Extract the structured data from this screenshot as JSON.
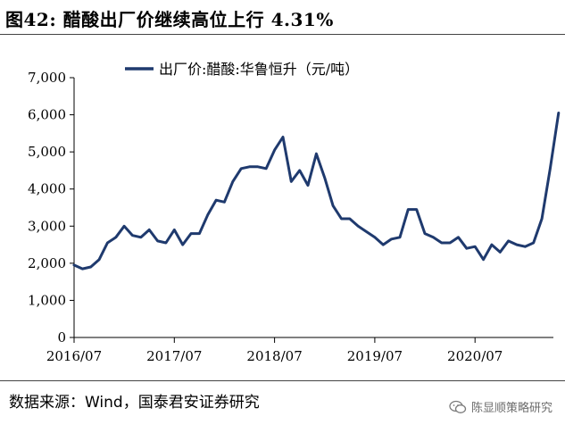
{
  "title": "图42: 醋酸出厂价继续高位上行 4.31%",
  "source": "数据来源：Wind，国泰君安证券研究",
  "watermark": {
    "text": "陈显顺策略研究",
    "icon": "wechat-logo-icon",
    "color": "#6c6c6c"
  },
  "chart_data": {
    "type": "line",
    "title": "",
    "xlabel": "",
    "ylabel": "",
    "ylim": [
      0,
      7000
    ],
    "y_ticks": [
      0,
      1000,
      2000,
      3000,
      4000,
      5000,
      6000,
      7000
    ],
    "y_tick_labels": [
      "0",
      "1,000",
      "2,000",
      "3,000",
      "4,000",
      "5,000",
      "6,000",
      "7,000"
    ],
    "x_ticks": [
      "2016/07",
      "2017/07",
      "2018/07",
      "2019/07",
      "2020/07"
    ],
    "xlim": [
      "2016-07",
      "2021-05"
    ],
    "grid": false,
    "legend_position": "top",
    "series": [
      {
        "name": "出厂价:醋酸:华鲁恒升（元/吨）",
        "color": "#1f3a6e",
        "x": [
          "2016-07",
          "2016-08",
          "2016-09",
          "2016-10",
          "2016-11",
          "2016-12",
          "2017-01",
          "2017-02",
          "2017-03",
          "2017-04",
          "2017-05",
          "2017-06",
          "2017-07",
          "2017-08",
          "2017-09",
          "2017-10",
          "2017-11",
          "2017-12",
          "2018-01",
          "2018-02",
          "2018-03",
          "2018-04",
          "2018-05",
          "2018-06",
          "2018-07",
          "2018-08",
          "2018-09",
          "2018-10",
          "2018-11",
          "2018-12",
          "2019-01",
          "2019-02",
          "2019-03",
          "2019-04",
          "2019-05",
          "2019-06",
          "2019-07",
          "2019-08",
          "2019-09",
          "2019-10",
          "2019-11",
          "2019-12",
          "2020-01",
          "2020-02",
          "2020-03",
          "2020-04",
          "2020-05",
          "2020-06",
          "2020-07",
          "2020-08",
          "2020-09",
          "2020-10",
          "2020-11",
          "2020-12",
          "2021-01",
          "2021-02",
          "2021-03",
          "2021-04",
          "2021-05"
        ],
        "values": [
          1950,
          1850,
          1900,
          2100,
          2550,
          2700,
          3000,
          2750,
          2700,
          2900,
          2600,
          2550,
          2900,
          2500,
          2800,
          2800,
          3300,
          3700,
          3650,
          4200,
          4550,
          4600,
          4600,
          4550,
          5050,
          5400,
          4200,
          4500,
          4100,
          4950,
          4300,
          3550,
          3200,
          3200,
          3000,
          2850,
          2700,
          2500,
          2650,
          2700,
          3450,
          3450,
          2800,
          2700,
          2550,
          2550,
          2700,
          2400,
          2450,
          2100,
          2500,
          2300,
          2600,
          2500,
          2450,
          2550,
          3200,
          4550,
          6050
        ]
      }
    ]
  }
}
